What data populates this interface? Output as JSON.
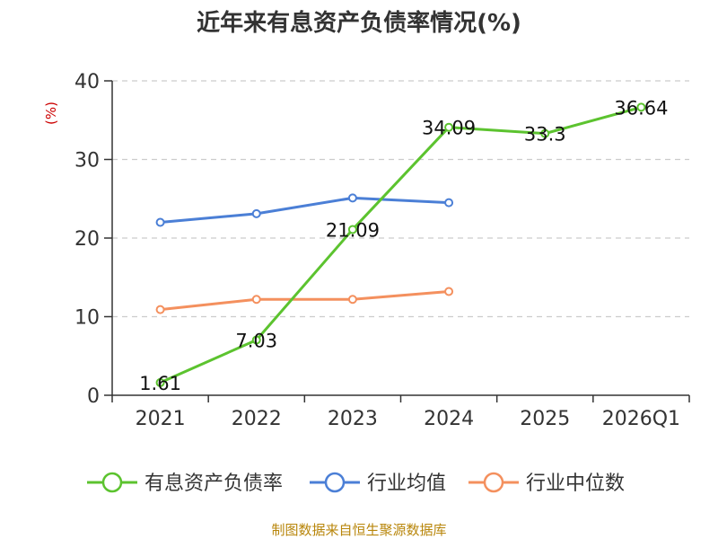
{
  "chart_data": {
    "type": "line",
    "title": "近年来有息资产负债率情况(%)",
    "ylabel": "(%)",
    "xlabel": "",
    "categories": [
      "2021",
      "2022",
      "2023",
      "2024",
      "2025",
      "2026Q1"
    ],
    "ylim": [
      0,
      40
    ],
    "yticks": [
      0,
      10,
      20,
      30,
      40
    ],
    "grid": true,
    "legend_position": "bottom",
    "series": [
      {
        "name": "有息资产负债率",
        "color": "#5cc32f",
        "values": [
          1.61,
          7.03,
          21.09,
          34.09,
          33.3,
          36.64
        ],
        "labels": [
          "1.61",
          "7.03",
          "21.09",
          "34.09",
          "33.3",
          "36.64"
        ]
      },
      {
        "name": "行业均值",
        "color": "#4b7fd6",
        "values": [
          22.0,
          23.1,
          25.1,
          24.5,
          null,
          null
        ]
      },
      {
        "name": "行业中位数",
        "color": "#f4905e",
        "values": [
          10.9,
          12.2,
          12.2,
          13.2,
          null,
          null
        ]
      }
    ],
    "source": "制图数据来自恒生聚源数据库"
  }
}
